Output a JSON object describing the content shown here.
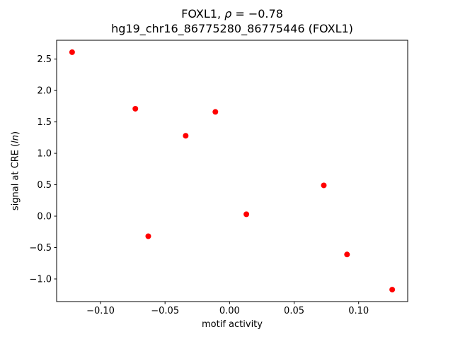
{
  "figure": {
    "title1_pre": "FOXL1, ",
    "title1_rho": "ρ",
    "title1_post": " = −0.78",
    "title2": "hg19_chr16_86775280_86775446 (FOXL1)",
    "xlabel": "motif activity",
    "ylabel_pre": "signal at CRE (",
    "ylabel_italic": "ln",
    "ylabel_post": ")"
  },
  "chart_data": {
    "type": "scatter",
    "title": "FOXL1, ρ = −0.78\nhg19_chr16_86775280_86775446 (FOXL1)",
    "xlabel": "motif activity",
    "ylabel": "signal at CRE (ln)",
    "marker_color": "#ff0000",
    "spine_color": "#000000",
    "grid": false,
    "legend": null,
    "xlim": [
      -0.134,
      0.138
    ],
    "ylim": [
      -1.36,
      2.8
    ],
    "xticks": [
      -0.1,
      -0.05,
      0.0,
      0.05,
      0.1
    ],
    "xtick_labels": [
      "−0.10",
      "−0.05",
      "0.00",
      "0.05",
      "0.10"
    ],
    "yticks": [
      -1.0,
      -0.5,
      0.0,
      0.5,
      1.0,
      1.5,
      2.0,
      2.5
    ],
    "ytick_labels": [
      "−1.0",
      "−0.5",
      "0.0",
      "0.5",
      "1.0",
      "1.5",
      "2.0",
      "2.5"
    ],
    "points": [
      {
        "x": -0.122,
        "y": 2.61
      },
      {
        "x": -0.073,
        "y": 1.71
      },
      {
        "x": -0.063,
        "y": -0.32
      },
      {
        "x": -0.034,
        "y": 1.28
      },
      {
        "x": -0.011,
        "y": 1.66
      },
      {
        "x": 0.013,
        "y": 0.03
      },
      {
        "x": 0.073,
        "y": 0.49
      },
      {
        "x": 0.091,
        "y": -0.61
      },
      {
        "x": 0.126,
        "y": -1.17
      }
    ]
  }
}
